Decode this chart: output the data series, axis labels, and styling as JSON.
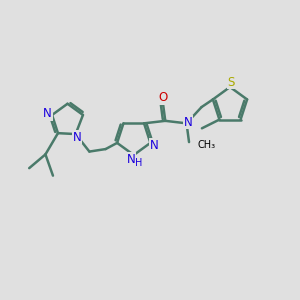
{
  "bg_color": "#e0e0e0",
  "bond_color": "#4a7a6a",
  "bond_width": 1.8,
  "N_color": "#1a00dd",
  "O_color": "#cc0000",
  "S_color": "#aaaa00",
  "label_fontsize": 8.5,
  "label_fontsize_small": 7.0,
  "figsize": [
    3.0,
    3.0
  ],
  "dpi": 100,
  "xlim": [
    0,
    12
  ],
  "ylim": [
    0,
    10
  ]
}
